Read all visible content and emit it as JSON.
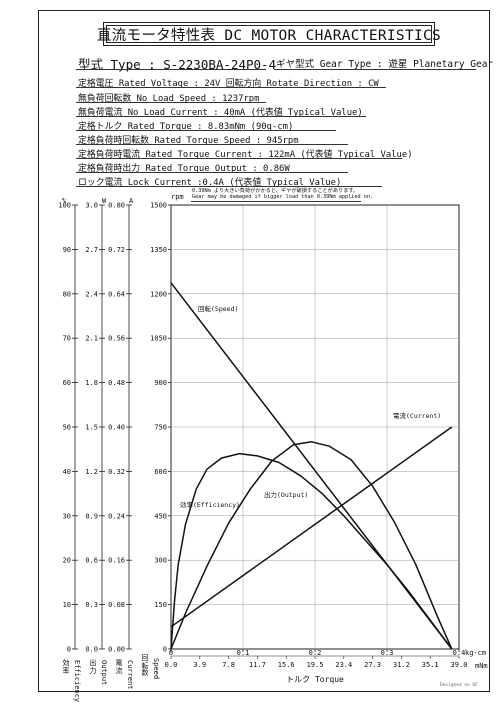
{
  "header": {
    "title": "直流モータ特性表 DC MOTOR CHARACTERISTICS",
    "model": "型式 Type : S-2230BA-24P0-4",
    "gear_type": "ギヤ型式 Gear Type : 遊星 Planetary Gear"
  },
  "specs": [
    "定格電圧 Rated Voltage : 24V   回転方向 Rotate Direction : CW",
    "無負荷回転数 No Load Speed : 1237rpm",
    "無負荷電流 No Load Current : 40mA (代表値 Typical Value)",
    "定格トルク Rated Torque : 8.83mNm (90g-cm)",
    "定格負荷時回転数 Rated Torque Speed : 945rpm",
    "定格負荷時電流 Rated Torque Current : 122mA (代表値 Typical Value)",
    "定格負荷時出力 Rated Torque Output : 0.86W",
    "ロック電流 Lock Current :0.4A (代表値 Typical Value)"
  ],
  "warning": [
    "0.39Nm より大きい負荷がかかると、ギヤが破損することがあります。",
    "Gear may be damaged if bigger load than 0.39Nm applied on."
  ],
  "axis_units": {
    "efficiency": "%",
    "output": "W",
    "current": "A",
    "speed": "rpm",
    "torque_kg": "kg-cm",
    "torque_mnm": "mNm"
  },
  "axis_titles": {
    "efficiency": [
      "効率",
      "Efficiency"
    ],
    "output": [
      "出力",
      "Output"
    ],
    "current": [
      "電流",
      "Current"
    ],
    "speed": [
      "回転数",
      "Speed"
    ],
    "x": "トルク Torque"
  },
  "signature": "Designed on DF",
  "chart_data": {
    "type": "line",
    "title": "",
    "xlabel": "トルク Torque",
    "ylabel": "回転数 Speed",
    "xlim": [
      0,
      0.4
    ],
    "x_ticks_kgcm": [
      "0",
      "0.1",
      "0.2",
      "0.3",
      "0.4"
    ],
    "x_ticks_mnm": [
      "0.0",
      "3.9",
      "7.8",
      "11.7",
      "15.6",
      "19.5",
      "23.4",
      "27.3",
      "31.2",
      "35.1",
      "39.0"
    ],
    "y_axes": {
      "speed": {
        "range": [
          0,
          1500
        ],
        "ticks": [
          "0",
          "150",
          "300",
          "450",
          "600",
          "750",
          "900",
          "1050",
          "1200",
          "1350",
          "1500"
        ]
      },
      "efficiency": {
        "range": [
          0,
          100
        ],
        "ticks": [
          "0",
          "10",
          "20",
          "30",
          "40",
          "50",
          "60",
          "70",
          "80",
          "90",
          "100"
        ]
      },
      "output": {
        "range": [
          0,
          3.0
        ],
        "ticks": [
          "0.0",
          "0.3",
          "0.6",
          "0.9",
          "1.2",
          "1.5",
          "1.8",
          "2.1",
          "2.4",
          "2.7",
          "3.0"
        ]
      },
      "current": {
        "range": [
          0,
          0.8
        ],
        "ticks": [
          "0.00",
          "0.08",
          "0.16",
          "0.24",
          "0.32",
          "0.40",
          "0.48",
          "0.56",
          "0.64",
          "0.72",
          "0.80"
        ]
      }
    },
    "series": [
      {
        "name": "回転(Speed)",
        "axis": "speed",
        "x": [
          0,
          0.39
        ],
        "y": [
          1237,
          0
        ]
      },
      {
        "name": "電流(Current)",
        "axis": "current",
        "x": [
          0,
          0.39
        ],
        "y": [
          0.04,
          0.4
        ]
      },
      {
        "name": "出力(Output)",
        "axis": "output",
        "x": [
          0,
          0.02,
          0.05,
          0.08,
          0.11,
          0.14,
          0.17,
          0.195,
          0.22,
          0.25,
          0.28,
          0.31,
          0.34,
          0.37,
          0.39
        ],
        "y": [
          0,
          0.24,
          0.56,
          0.85,
          1.08,
          1.27,
          1.38,
          1.4,
          1.37,
          1.28,
          1.1,
          0.86,
          0.57,
          0.22,
          0
        ]
      },
      {
        "name": "効率(Efficiency)",
        "axis": "efficiency",
        "x": [
          0,
          0.005,
          0.01,
          0.02,
          0.035,
          0.05,
          0.07,
          0.095,
          0.12,
          0.15,
          0.18,
          0.21,
          0.24,
          0.27,
          0.3,
          0.33,
          0.36,
          0.39
        ],
        "y": [
          0,
          11,
          19,
          28,
          36,
          40.5,
          43,
          44,
          43.5,
          42,
          39,
          35,
          30,
          24.5,
          19,
          13,
          6.5,
          0
        ]
      }
    ]
  }
}
